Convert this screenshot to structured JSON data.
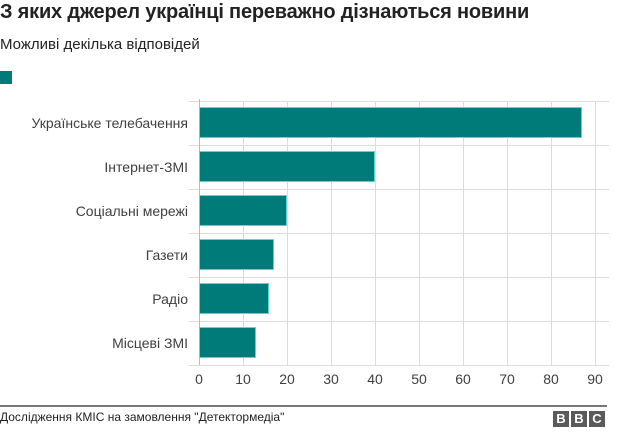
{
  "header": {
    "title": "З яких джерел українці переважно дізнаються новини",
    "subtitle": "Можливі декілька відповідей"
  },
  "footer": {
    "source": "Дослідження КМІС на замовлення \"Детектормедіа\"",
    "logo_letters": [
      "B",
      "B",
      "C"
    ]
  },
  "colors": {
    "bar": "#007b7a",
    "grid": "#dcdcdc",
    "text": "#404040"
  },
  "chart_data": {
    "type": "bar",
    "orientation": "horizontal",
    "title": "З яких джерел українці переважно дізнаються новини",
    "subtitle": "Можливі декілька відповідей",
    "categories": [
      "Українське телебачення",
      "Інтернет-ЗМІ",
      "Соціальні мережі",
      "Газети",
      "Радіо",
      "Місцеві ЗМІ"
    ],
    "series": [
      {
        "name": "",
        "values": [
          87,
          40,
          20,
          17,
          16,
          13
        ],
        "color": "#007b7a"
      }
    ],
    "xlabel": "",
    "ylabel": "",
    "xlim": [
      0,
      90
    ],
    "xticks": [
      0,
      10,
      20,
      30,
      40,
      50,
      60,
      70,
      80,
      90
    ],
    "grid": true,
    "legend_position": "top-left",
    "source": "Дослідження КМІС на замовлення \"Детектормедіа\""
  }
}
